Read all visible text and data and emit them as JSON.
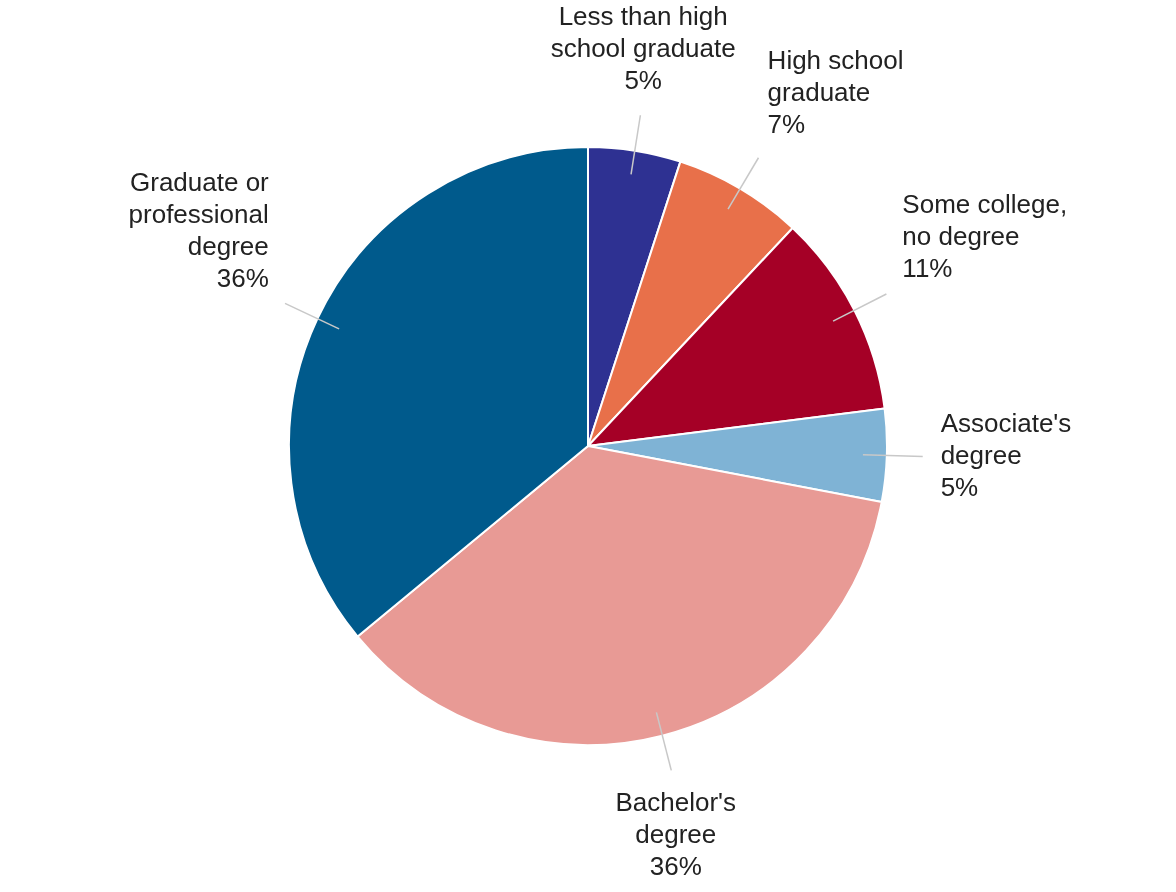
{
  "chart_data": {
    "type": "pie",
    "categories": [
      "Less than high school graduate",
      "High school graduate",
      "Some college, no degree",
      "Associate's degree",
      "Bachelor's degree",
      "Graduate or professional degree"
    ],
    "values": [
      5,
      7,
      11,
      5,
      36,
      36
    ],
    "value_labels": [
      "5%",
      "7%",
      "11%",
      "5%",
      "36%",
      "36%"
    ],
    "colors": [
      "#2e3192",
      "#e8704a",
      "#a50026",
      "#7fb3d5",
      "#e89a95",
      "#005a8c"
    ],
    "legend": false
  }
}
